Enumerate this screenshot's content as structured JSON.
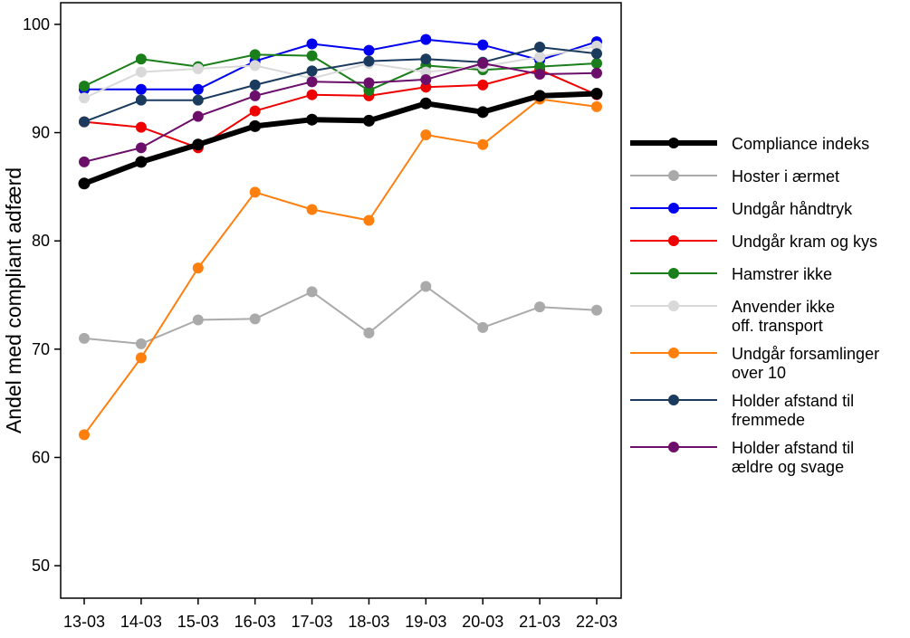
{
  "chart_data": {
    "type": "line",
    "title": "",
    "xlabel": "",
    "ylabel": "Andel med compliant adfærd",
    "ylim": [
      47,
      102
    ],
    "yticks": [
      50,
      60,
      70,
      80,
      90,
      100
    ],
    "grid": false,
    "legend_position": "right",
    "categories": [
      "13-03",
      "14-03",
      "15-03",
      "16-03",
      "17-03",
      "18-03",
      "19-03",
      "20-03",
      "21-03",
      "22-03"
    ],
    "series": [
      {
        "name": "Compliance indeks",
        "label_lines": [
          "Compliance indeks"
        ],
        "color": "#000000",
        "bold": true,
        "values": [
          85.3,
          87.3,
          88.9,
          90.6,
          91.2,
          91.1,
          92.7,
          91.9,
          93.4,
          93.6
        ]
      },
      {
        "name": "Hoster i ærmet",
        "label_lines": [
          "Hoster i ærmet"
        ],
        "color": "#aaaaaa",
        "values": [
          71.0,
          70.5,
          72.7,
          72.8,
          75.3,
          71.5,
          75.8,
          72.0,
          73.9,
          73.6
        ]
      },
      {
        "name": "Undgår håndtryk",
        "label_lines": [
          "Undgår håndtryk"
        ],
        "color": "#0000ee",
        "values": [
          94.0,
          94.0,
          94.0,
          96.6,
          98.2,
          97.6,
          98.6,
          98.1,
          96.7,
          98.4
        ]
      },
      {
        "name": "Undgår kram og kys",
        "label_lines": [
          "Undgår kram og kys"
        ],
        "color": "#ee0000",
        "values": [
          91.0,
          90.5,
          88.6,
          92.0,
          93.5,
          93.4,
          94.2,
          94.4,
          95.8,
          93.5
        ]
      },
      {
        "name": "Hamstrer ikke",
        "label_lines": [
          "Hamstrer ikke"
        ],
        "color": "#1a7f1a",
        "values": [
          94.3,
          96.8,
          96.1,
          97.2,
          97.1,
          93.9,
          96.2,
          95.8,
          96.1,
          96.4
        ]
      },
      {
        "name": "Anvender ikke off. transport",
        "label_lines": [
          "Anvender ikke",
          "off. transport"
        ],
        "color": "#d9d9d9",
        "values": [
          93.2,
          95.6,
          95.9,
          96.2,
          95.0,
          96.4,
          95.6,
          96.1,
          97.0,
          98.0
        ]
      },
      {
        "name": "Undgår forsamlinger over 10",
        "label_lines": [
          "Undgår forsamlinger",
          "over 10"
        ],
        "color": "#ff7f0e",
        "values": [
          62.1,
          69.2,
          77.5,
          84.5,
          82.9,
          81.9,
          89.8,
          88.9,
          93.1,
          92.4
        ]
      },
      {
        "name": "Holder afstand til fremmede",
        "label_lines": [
          "Holder afstand til",
          "fremmede"
        ],
        "color": "#1a3a5e",
        "values": [
          91.0,
          93.0,
          93.0,
          94.4,
          95.7,
          96.6,
          96.8,
          96.5,
          97.9,
          97.3
        ]
      },
      {
        "name": "Holder afstand til ældre og svage",
        "label_lines": [
          "Holder afstand til",
          "ældre og svage"
        ],
        "color": "#6b0f6b",
        "values": [
          87.3,
          88.6,
          91.5,
          93.4,
          94.7,
          94.6,
          94.9,
          96.4,
          95.4,
          95.5
        ]
      }
    ]
  }
}
